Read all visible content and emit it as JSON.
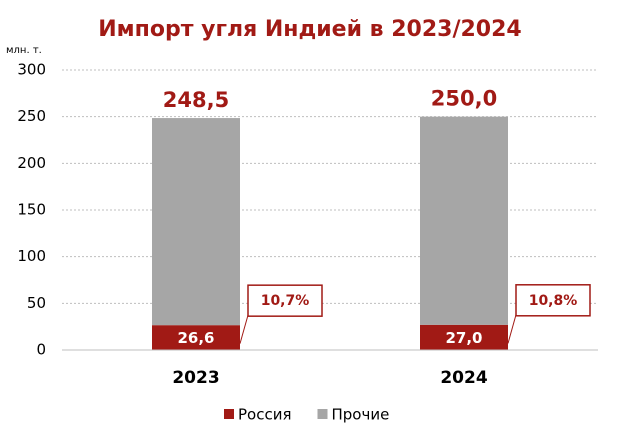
{
  "chart_data": {
    "type": "stacked_bar",
    "title": "Импорт угля Индией в 2023/2024",
    "y_unit": "млн. т.",
    "categories": [
      "2023",
      "2024"
    ],
    "series": [
      {
        "name": "Россия",
        "color": "#a11a15",
        "values": [
          26.6,
          27.0
        ],
        "value_labels": [
          "26,6",
          "27,0"
        ]
      },
      {
        "name": "Прочие",
        "color": "#a6a6a6",
        "values": [
          221.9,
          223.0
        ]
      }
    ],
    "totals": [
      248.5,
      250.0
    ],
    "total_labels": [
      "248,5",
      "250,0"
    ],
    "shares": [
      10.7,
      10.8
    ],
    "share_labels": [
      "10,7%",
      "10,8%"
    ],
    "ylim": [
      0,
      300
    ],
    "yticks": [
      0,
      50,
      100,
      150,
      200,
      250,
      300
    ],
    "grid": true,
    "legend": "bottom"
  }
}
